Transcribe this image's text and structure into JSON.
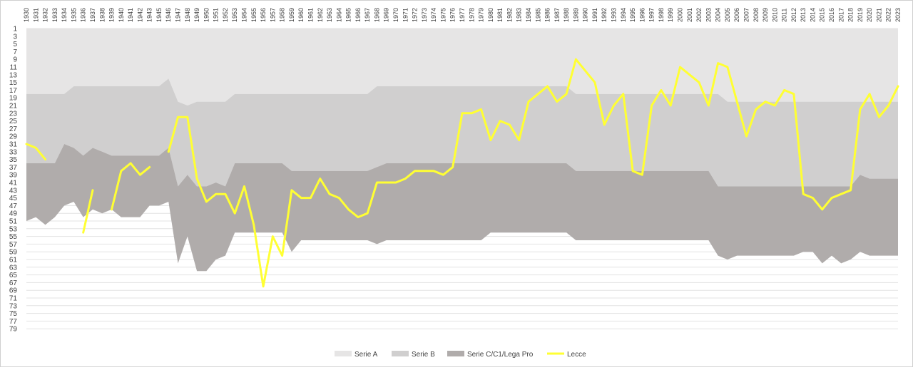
{
  "chart_data": {
    "type": "area",
    "title": "",
    "xlabel": "",
    "ylabel": "",
    "ylim": [
      1,
      80
    ],
    "y_reversed": true,
    "grid": true,
    "legend_position": "bottom",
    "y_ticks": [
      1,
      3,
      5,
      7,
      9,
      11,
      13,
      15,
      17,
      19,
      21,
      23,
      25,
      27,
      29,
      31,
      33,
      35,
      37,
      39,
      41,
      43,
      45,
      47,
      49,
      51,
      53,
      55,
      57,
      59,
      61,
      63,
      65,
      67,
      69,
      71,
      73,
      75,
      77,
      79
    ],
    "seasons": [
      "1930",
      "1931",
      "1932",
      "1933",
      "1934",
      "1935",
      "1936",
      "1937",
      "1938",
      "1939",
      "1940",
      "1941",
      "1942",
      "1943",
      "1945",
      "1946",
      "1947",
      "1948",
      "1949",
      "1950",
      "1951",
      "1952",
      "1953",
      "1954",
      "1955",
      "1956",
      "1957",
      "1958",
      "1959",
      "1960",
      "1961",
      "1962",
      "1963",
      "1964",
      "1965",
      "1966",
      "1967",
      "1968",
      "1969",
      "1970",
      "1971",
      "1972",
      "1973",
      "1974",
      "1975",
      "1976",
      "1977",
      "1978",
      "1979",
      "1980",
      "1981",
      "1982",
      "1983",
      "1984",
      "1985",
      "1986",
      "1987",
      "1988",
      "1989",
      "1990",
      "1991",
      "1992",
      "1993",
      "1994",
      "1995",
      "1996",
      "1997",
      "1998",
      "1999",
      "2000",
      "2001",
      "2002",
      "2003",
      "2004",
      "2005",
      "2006",
      "2007",
      "2008",
      "2009",
      "2010",
      "2011",
      "2012",
      "2013",
      "2014",
      "2015",
      "2016",
      "2017",
      "2018",
      "2019",
      "2020",
      "2021",
      "2022",
      "2023"
    ],
    "series": [
      {
        "name": "Serie A",
        "color": "#e6e5e5",
        "values": [
          18,
          18,
          18,
          18,
          18,
          16,
          16,
          16,
          16,
          16,
          16,
          16,
          16,
          16,
          16,
          14,
          20,
          21,
          20,
          20,
          20,
          20,
          18,
          18,
          18,
          18,
          18,
          18,
          18,
          18,
          18,
          18,
          18,
          18,
          18,
          18,
          18,
          16,
          16,
          16,
          16,
          16,
          16,
          16,
          16,
          16,
          16,
          16,
          16,
          16,
          16,
          16,
          16,
          16,
          16,
          16,
          16,
          16,
          18,
          18,
          18,
          18,
          18,
          18,
          18,
          18,
          18,
          18,
          18,
          18,
          18,
          18,
          18,
          18,
          20,
          20,
          20,
          20,
          20,
          20,
          20,
          20,
          20,
          20,
          20,
          20,
          20,
          20,
          20,
          20,
          20,
          20,
          20
        ]
      },
      {
        "name": "Serie B",
        "color": "#d0cfcf",
        "values": [
          36,
          36,
          36,
          36,
          31,
          32,
          34,
          32,
          33,
          34,
          34,
          34,
          34,
          34,
          34,
          32,
          42,
          39,
          42,
          42,
          41,
          42,
          36,
          36,
          36,
          36,
          36,
          36,
          38,
          38,
          38,
          38,
          38,
          38,
          38,
          38,
          38,
          37,
          36,
          36,
          36,
          36,
          36,
          36,
          36,
          36,
          36,
          36,
          36,
          36,
          36,
          36,
          36,
          36,
          36,
          36,
          36,
          36,
          38,
          38,
          38,
          38,
          38,
          38,
          38,
          38,
          38,
          38,
          38,
          38,
          38,
          38,
          38,
          42,
          42,
          42,
          42,
          42,
          42,
          42,
          42,
          42,
          42,
          42,
          42,
          42,
          42,
          42,
          39,
          40,
          40,
          40,
          40
        ]
      },
      {
        "name": "Serie C/C1/Lega Pro",
        "color": "#b0acab",
        "values": [
          51,
          50,
          52,
          50,
          47,
          46,
          50,
          48,
          49,
          48,
          50,
          50,
          50,
          47,
          47,
          46,
          62,
          55,
          64,
          64,
          61,
          60,
          54,
          54,
          54,
          54,
          54,
          54,
          59,
          56,
          56,
          56,
          56,
          56,
          56,
          56,
          56,
          57,
          56,
          56,
          56,
          56,
          56,
          56,
          56,
          56,
          56,
          56,
          56,
          54,
          54,
          54,
          54,
          54,
          54,
          54,
          54,
          54,
          56,
          56,
          56,
          56,
          56,
          56,
          56,
          56,
          56,
          56,
          56,
          56,
          56,
          56,
          56,
          60,
          61,
          60,
          60,
          60,
          60,
          60,
          60,
          60,
          59,
          59,
          62,
          60,
          62,
          61,
          59,
          60,
          60,
          60,
          60
        ]
      },
      {
        "name": "Lecce",
        "color": "#ffff33",
        "values": [
          31,
          32,
          35,
          null,
          null,
          null,
          54,
          43,
          null,
          48,
          38,
          36,
          39,
          37,
          null,
          33,
          24,
          24,
          40,
          46,
          44,
          44,
          49,
          42,
          52,
          68,
          55,
          60,
          43,
          45,
          45,
          40,
          44,
          45,
          48,
          50,
          49,
          41,
          41,
          41,
          40,
          38,
          38,
          38,
          39,
          37,
          23,
          23,
          22,
          30,
          25,
          26,
          30,
          20,
          18,
          16,
          20,
          18,
          9,
          12,
          15,
          26,
          21,
          18,
          38,
          39,
          21,
          17,
          21,
          11,
          13,
          15,
          21,
          10,
          11,
          20,
          29,
          22,
          20,
          21,
          17,
          18,
          44,
          45,
          48,
          45,
          44,
          43,
          22,
          18,
          24,
          21,
          16
        ]
      }
    ]
  }
}
